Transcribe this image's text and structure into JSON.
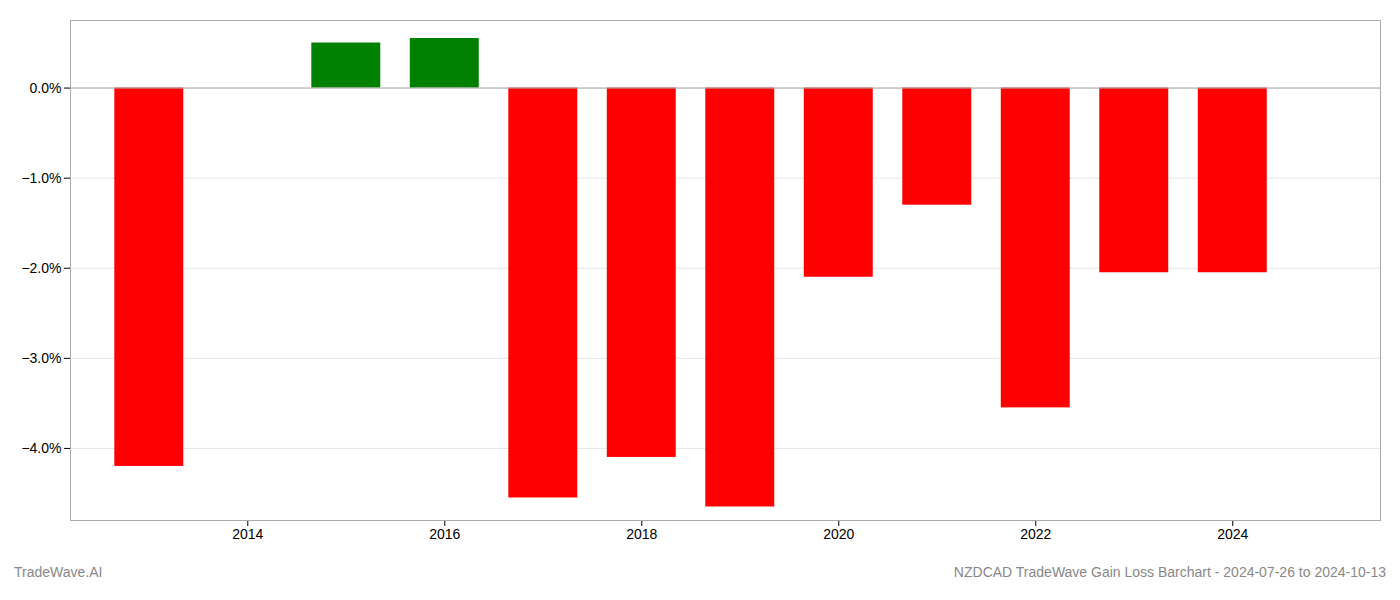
{
  "chart_data": {
    "type": "bar",
    "x": [
      2013,
      2015,
      2016,
      2017,
      2018,
      2019,
      2020,
      2021,
      2022,
      2023,
      2024
    ],
    "values": [
      -4.2,
      0.5,
      0.55,
      -4.55,
      -4.1,
      -4.65,
      -2.1,
      -1.3,
      -3.55,
      -2.05,
      -2.05
    ],
    "colors": [
      "#ff0000",
      "#008000",
      "#008000",
      "#ff0000",
      "#ff0000",
      "#ff0000",
      "#ff0000",
      "#ff0000",
      "#ff0000",
      "#ff0000",
      "#ff0000"
    ],
    "xlim": [
      2012.2,
      2025.5
    ],
    "xticks": [
      2014,
      2016,
      2018,
      2020,
      2022,
      2024
    ],
    "ylim": [
      -4.8,
      0.75
    ],
    "yticks": [
      {
        "value": -4,
        "label": "−4.0%"
      },
      {
        "value": -3,
        "label": "−3.0%"
      },
      {
        "value": -2,
        "label": "−2.0%"
      },
      {
        "value": -1,
        "label": "−1.0%"
      },
      {
        "value": 0,
        "label": "0.0%"
      }
    ],
    "grid": true,
    "annotations": [
      "TradeWave.AI",
      "NZDCAD TradeWave Gain Loss Barchart - 2024-07-26 to 2024-10-13"
    ]
  }
}
